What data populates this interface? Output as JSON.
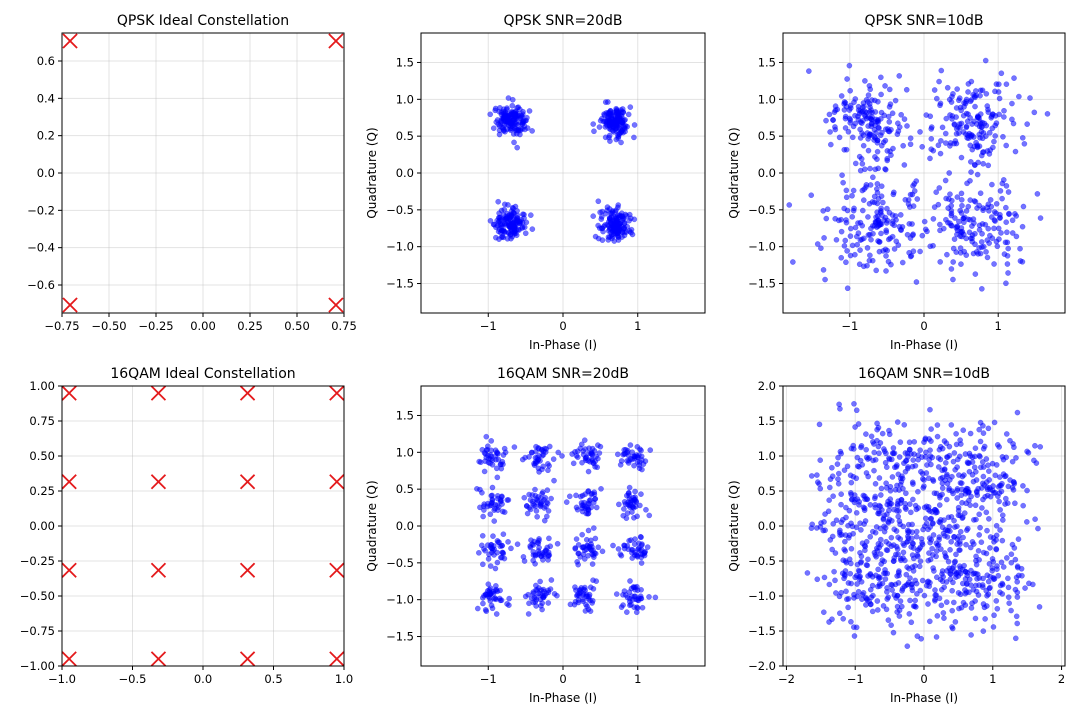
{
  "colors": {
    "ideal_marker": "#e41a1c",
    "received_point": "#0000ff"
  },
  "chart_data": [
    {
      "id": "qpsk-ideal",
      "type": "scatter",
      "marker": "x",
      "title": "QPSK Ideal Constellation",
      "xlabel": "",
      "ylabel": "",
      "xlim": [
        -0.75,
        0.75
      ],
      "ylim": [
        -0.75,
        0.75
      ],
      "xticks": [
        -0.75,
        -0.5,
        -0.25,
        0.0,
        0.25,
        0.5,
        0.75
      ],
      "xtick_labels": [
        "−0.75",
        "−0.50",
        "−0.25",
        "0.00",
        "0.25",
        "0.50",
        "0.75"
      ],
      "yticks": [
        -0.6,
        -0.4,
        -0.2,
        0.0,
        0.2,
        0.4,
        0.6
      ],
      "ytick_labels": [
        "−0.6",
        "−0.4",
        "−0.2",
        "0.0",
        "0.2",
        "0.4",
        "0.6"
      ],
      "points": [
        [
          -0.707,
          0.707
        ],
        [
          0.707,
          0.707
        ],
        [
          -0.707,
          -0.707
        ],
        [
          0.707,
          -0.707
        ]
      ]
    },
    {
      "id": "qpsk-snr20",
      "type": "scatter",
      "marker": "dot",
      "title": "QPSK SNR=20dB",
      "xlabel": "In-Phase (I)",
      "ylabel": "Quadrature (Q)",
      "xlim": [
        -1.9,
        1.9
      ],
      "ylim": [
        -1.9,
        1.9
      ],
      "xticks": [
        -1,
        0,
        1
      ],
      "xtick_labels": [
        "−1",
        "0",
        "1"
      ],
      "yticks": [
        -1.5,
        -1.0,
        -0.5,
        0.0,
        0.5,
        1.0,
        1.5
      ],
      "ytick_labels": [
        "−1.5",
        "−1.0",
        "−0.5",
        "0.0",
        "0.5",
        "1.0",
        "1.5"
      ],
      "centers": [
        [
          -0.707,
          0.707
        ],
        [
          0.707,
          0.707
        ],
        [
          -0.707,
          -0.707
        ],
        [
          0.707,
          -0.707
        ]
      ],
      "points_per_center": 140,
      "noise_std": 0.1
    },
    {
      "id": "qpsk-snr10",
      "type": "scatter",
      "marker": "dot",
      "title": "QPSK SNR=10dB",
      "xlabel": "In-Phase (I)",
      "ylabel": "Quadrature (Q)",
      "xlim": [
        -1.9,
        1.9
      ],
      "ylim": [
        -1.9,
        1.9
      ],
      "xticks": [
        -1,
        0,
        1
      ],
      "xtick_labels": [
        "−1",
        "0",
        "1"
      ],
      "yticks": [
        -1.5,
        -1.0,
        -0.5,
        0.0,
        0.5,
        1.0,
        1.5
      ],
      "ytick_labels": [
        "−1.5",
        "−1.0",
        "−0.5",
        "0.0",
        "0.5",
        "1.0",
        "1.5"
      ],
      "centers": [
        [
          -0.707,
          0.707
        ],
        [
          0.707,
          0.707
        ],
        [
          -0.707,
          -0.707
        ],
        [
          0.707,
          -0.707
        ]
      ],
      "points_per_center": 170,
      "noise_std": 0.32
    },
    {
      "id": "qam16-ideal",
      "type": "scatter",
      "marker": "x",
      "title": "16QAM Ideal Constellation",
      "xlabel": "",
      "ylabel": "",
      "xlim": [
        -1.0,
        1.0
      ],
      "ylim": [
        -1.0,
        1.0
      ],
      "xticks": [
        -1.0,
        -0.5,
        0.0,
        0.5,
        1.0
      ],
      "xtick_labels": [
        "−1.0",
        "−0.5",
        "0.0",
        "0.5",
        "1.0"
      ],
      "yticks": [
        -1.0,
        -0.75,
        -0.5,
        -0.25,
        0.0,
        0.25,
        0.5,
        0.75,
        1.0
      ],
      "ytick_labels": [
        "−1.00",
        "−0.75",
        "−0.50",
        "−0.25",
        "0.00",
        "0.25",
        "0.50",
        "0.75",
        "1.00"
      ],
      "points": [
        [
          -0.949,
          0.949
        ],
        [
          -0.316,
          0.949
        ],
        [
          0.316,
          0.949
        ],
        [
          0.949,
          0.949
        ],
        [
          -0.949,
          0.316
        ],
        [
          -0.316,
          0.316
        ],
        [
          0.316,
          0.316
        ],
        [
          0.949,
          0.316
        ],
        [
          -0.949,
          -0.316
        ],
        [
          -0.316,
          -0.316
        ],
        [
          0.316,
          -0.316
        ],
        [
          0.949,
          -0.316
        ],
        [
          -0.949,
          -0.949
        ],
        [
          -0.316,
          -0.949
        ],
        [
          0.316,
          -0.949
        ],
        [
          0.949,
          -0.949
        ]
      ]
    },
    {
      "id": "qam16-snr20",
      "type": "scatter",
      "marker": "dot",
      "title": "16QAM SNR=20dB",
      "xlabel": "In-Phase (I)",
      "ylabel": "Quadrature (Q)",
      "xlim": [
        -1.9,
        1.9
      ],
      "ylim": [
        -1.9,
        1.9
      ],
      "xticks": [
        -1,
        0,
        1
      ],
      "xtick_labels": [
        "−1",
        "0",
        "1"
      ],
      "yticks": [
        -1.5,
        -1.0,
        -0.5,
        0.0,
        0.5,
        1.0,
        1.5
      ],
      "ytick_labels": [
        "−1.5",
        "−1.0",
        "−0.5",
        "0.0",
        "0.5",
        "1.0",
        "1.5"
      ],
      "centers": [
        [
          -0.949,
          0.949
        ],
        [
          -0.316,
          0.949
        ],
        [
          0.316,
          0.949
        ],
        [
          0.949,
          0.949
        ],
        [
          -0.949,
          0.316
        ],
        [
          -0.316,
          0.316
        ],
        [
          0.316,
          0.316
        ],
        [
          0.949,
          0.316
        ],
        [
          -0.949,
          -0.316
        ],
        [
          -0.316,
          -0.316
        ],
        [
          0.316,
          -0.316
        ],
        [
          0.949,
          -0.316
        ],
        [
          -0.949,
          -0.949
        ],
        [
          -0.316,
          -0.949
        ],
        [
          0.316,
          -0.949
        ],
        [
          0.949,
          -0.949
        ]
      ],
      "points_per_center": 40,
      "noise_std": 0.1
    },
    {
      "id": "qam16-snr10",
      "type": "scatter",
      "marker": "dot",
      "title": "16QAM SNR=10dB",
      "xlabel": "In-Phase (I)",
      "ylabel": "Quadrature (Q)",
      "xlim": [
        -2.05,
        2.05
      ],
      "ylim": [
        -2.0,
        2.0
      ],
      "xticks": [
        -2,
        -1,
        0,
        1,
        2
      ],
      "xtick_labels": [
        "−2",
        "−1",
        "0",
        "1",
        "2"
      ],
      "yticks": [
        -2.0,
        -1.5,
        -1.0,
        -0.5,
        0.0,
        0.5,
        1.0,
        1.5,
        2.0
      ],
      "ytick_labels": [
        "−2.0",
        "−1.5",
        "−1.0",
        "−0.5",
        "0.0",
        "0.5",
        "1.0",
        "1.5",
        "2.0"
      ],
      "centers": [
        [
          -0.949,
          0.949
        ],
        [
          -0.316,
          0.949
        ],
        [
          0.316,
          0.949
        ],
        [
          0.949,
          0.949
        ],
        [
          -0.949,
          0.316
        ],
        [
          -0.316,
          0.316
        ],
        [
          0.316,
          0.316
        ],
        [
          0.949,
          0.316
        ],
        [
          -0.949,
          -0.316
        ],
        [
          -0.316,
          -0.316
        ],
        [
          0.316,
          -0.316
        ],
        [
          0.949,
          -0.316
        ],
        [
          -0.949,
          -0.949
        ],
        [
          -0.316,
          -0.949
        ],
        [
          0.316,
          -0.949
        ],
        [
          0.949,
          -0.949
        ]
      ],
      "points_per_center": 60,
      "noise_std": 0.33
    }
  ]
}
